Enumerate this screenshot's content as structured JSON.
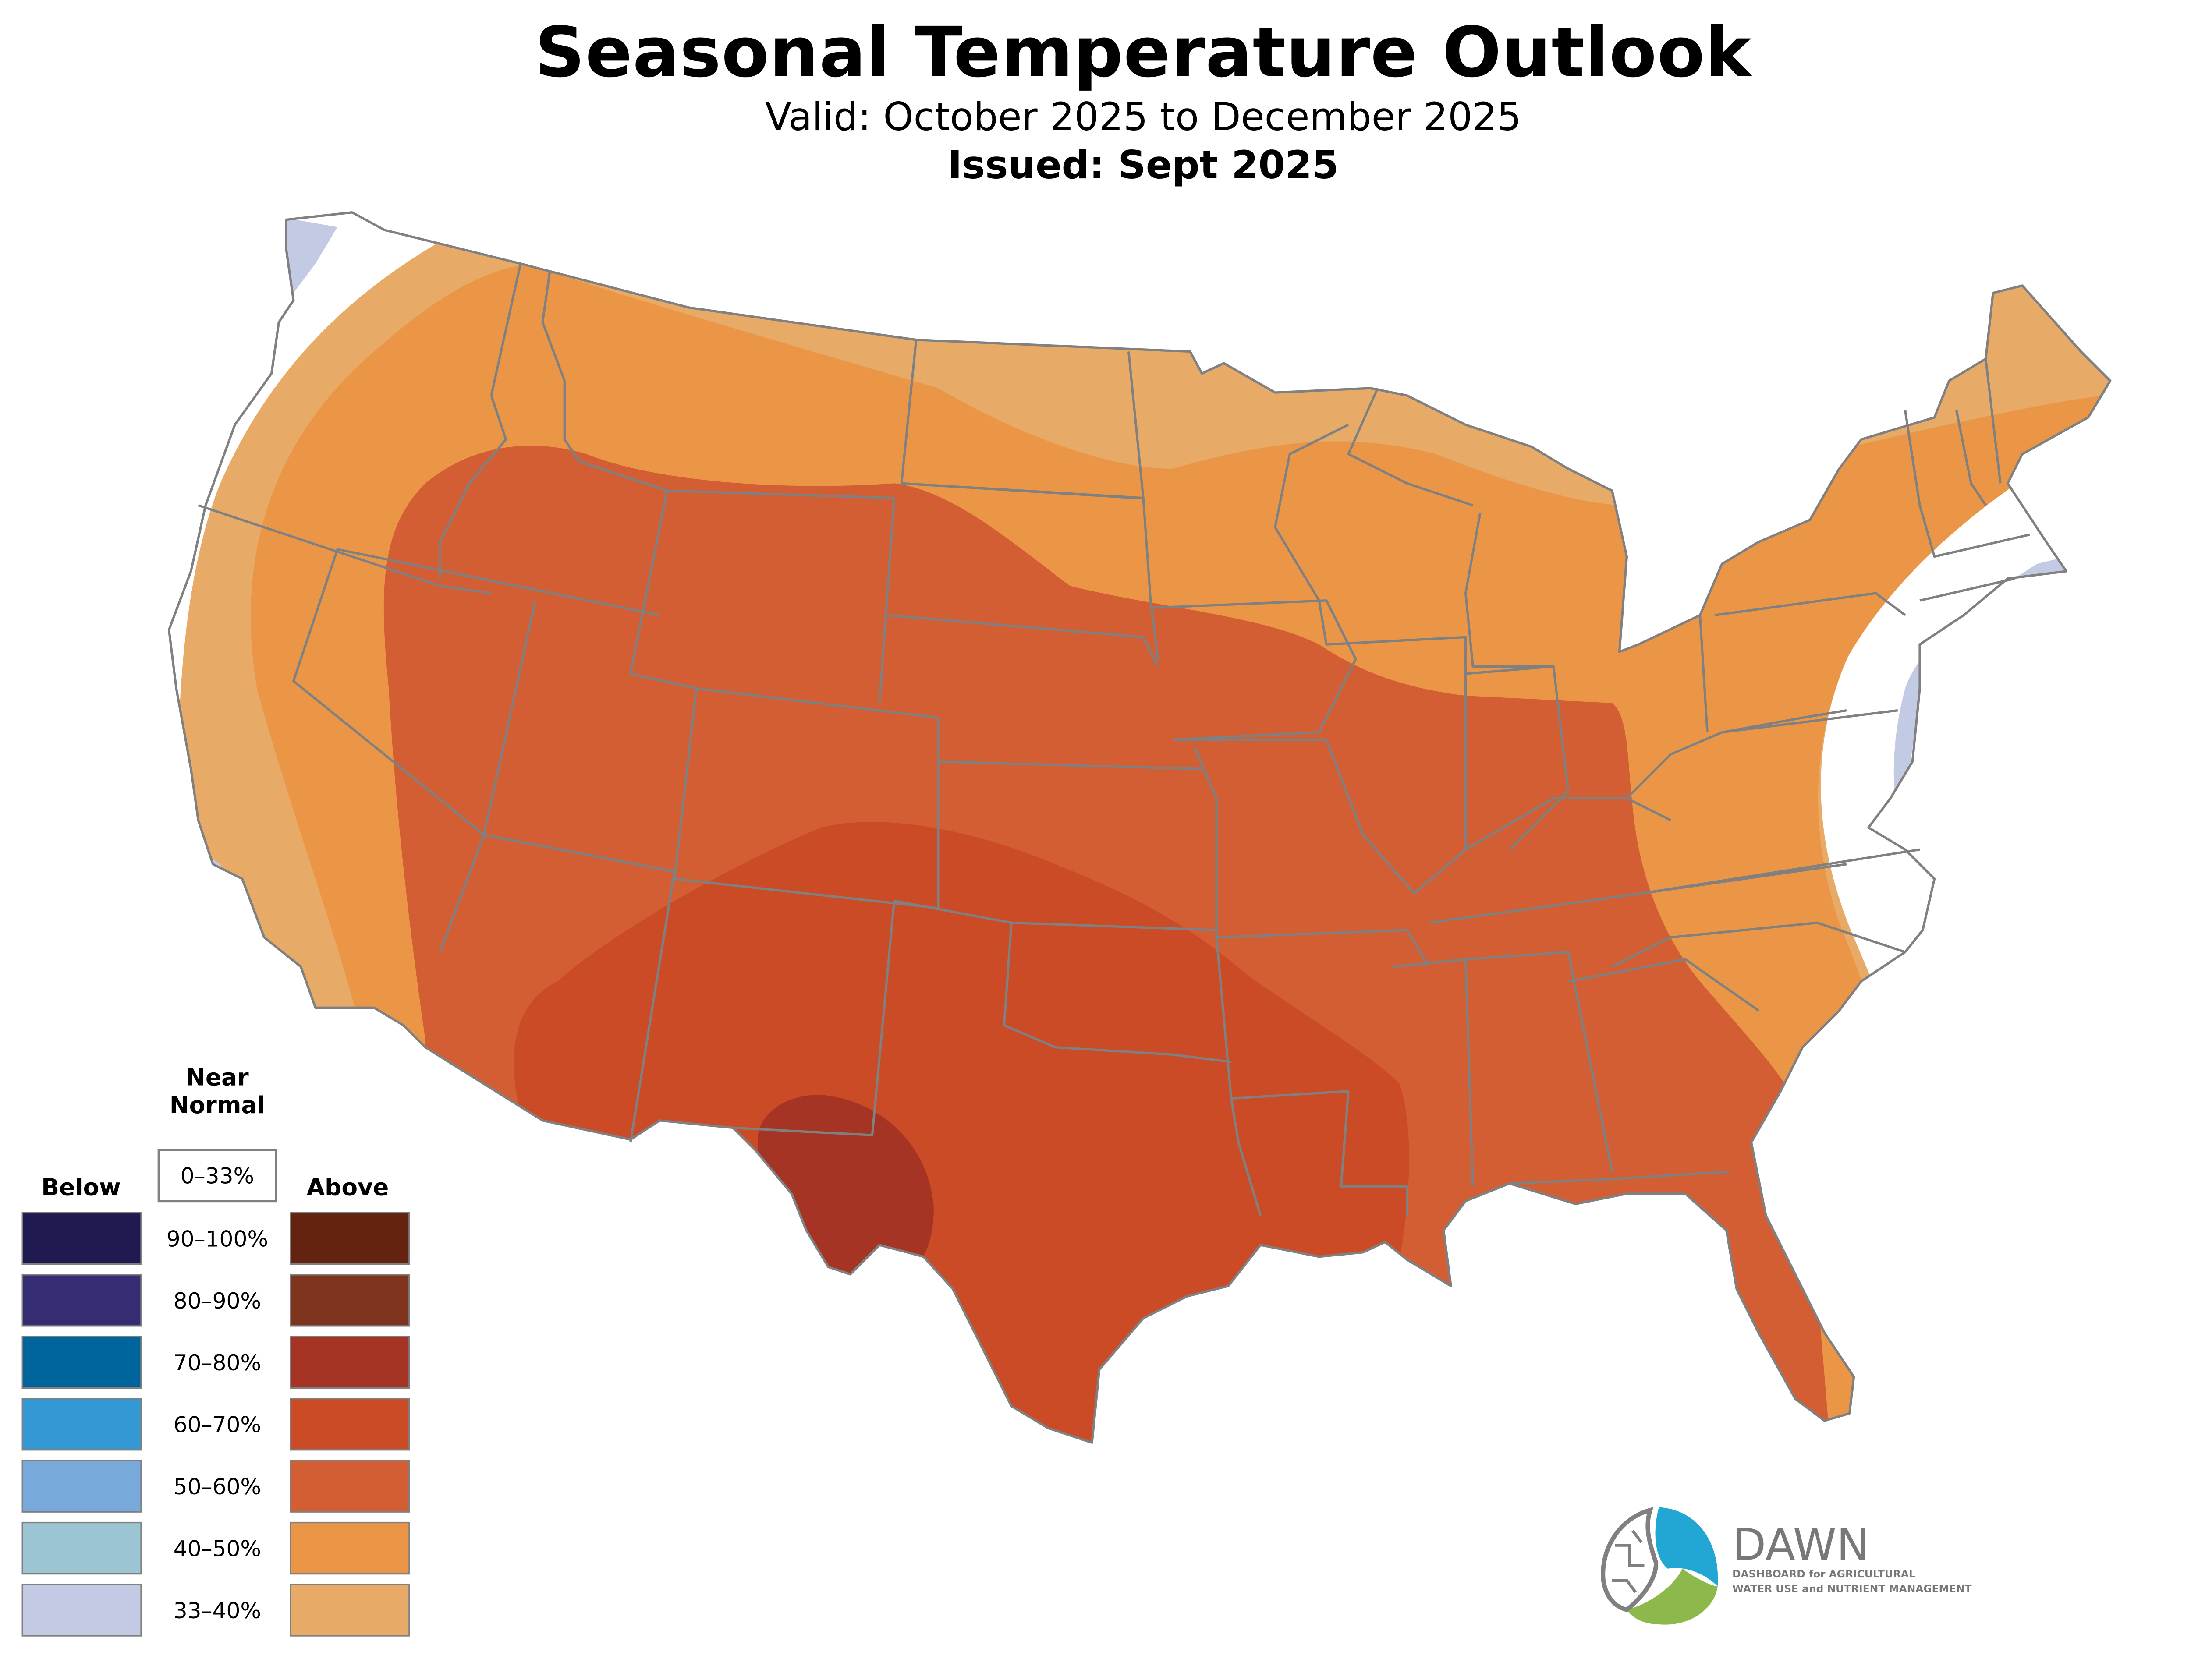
{
  "header": {
    "title": "Seasonal Temperature Outlook",
    "valid": "Valid: October 2025 to December 2025",
    "issued": "Issued: Sept 2025"
  },
  "map": {
    "subject": "Contiguous United States temperature probability outlook",
    "border_color": "#808080",
    "zones": [
      {
        "category": "Above",
        "range": "33–40%",
        "color": "#E7AB67"
      },
      {
        "category": "Above",
        "range": "40–50%",
        "color": "#EB9647"
      },
      {
        "category": "Above",
        "range": "50–60%",
        "color": "#D35E33"
      },
      {
        "category": "Above",
        "range": "60–70%",
        "color": "#CC4B27"
      },
      {
        "category": "Above",
        "range": "70–80%",
        "color": "#A63424"
      },
      {
        "category": "Below",
        "range": "33–40%",
        "color": "#C3CAE4"
      }
    ]
  },
  "legend": {
    "near_normal_title_1": "Near",
    "near_normal_title_2": "Normal",
    "near_normal_range": "0–33%",
    "below_title": "Below",
    "above_title": "Above",
    "rows": [
      {
        "range": "90–100%",
        "below_color": "#1F1A4F",
        "above_color": "#642310"
      },
      {
        "range": "80–90%",
        "below_color": "#342D74",
        "above_color": "#7F341D"
      },
      {
        "range": "70–80%",
        "below_color": "#00659C",
        "above_color": "#A63424"
      },
      {
        "range": "60–70%",
        "below_color": "#3498D5",
        "above_color": "#CC4B27"
      },
      {
        "range": "50–60%",
        "below_color": "#77A9DA",
        "above_color": "#D35E33"
      },
      {
        "range": "40–50%",
        "below_color": "#9CC5D3",
        "above_color": "#EB9647"
      },
      {
        "range": "33–40%",
        "below_color": "#C3CAE4",
        "above_color": "#E7AB67"
      }
    ]
  },
  "logo": {
    "name": "DAWN",
    "tagline_1": "DASHBOARD for AGRICULTURAL",
    "tagline_2": "WATER USE and NUTRIENT MANAGEMENT",
    "colors": {
      "blue": "#22A7D5",
      "green": "#8DB84B",
      "gray": "#787878"
    }
  }
}
